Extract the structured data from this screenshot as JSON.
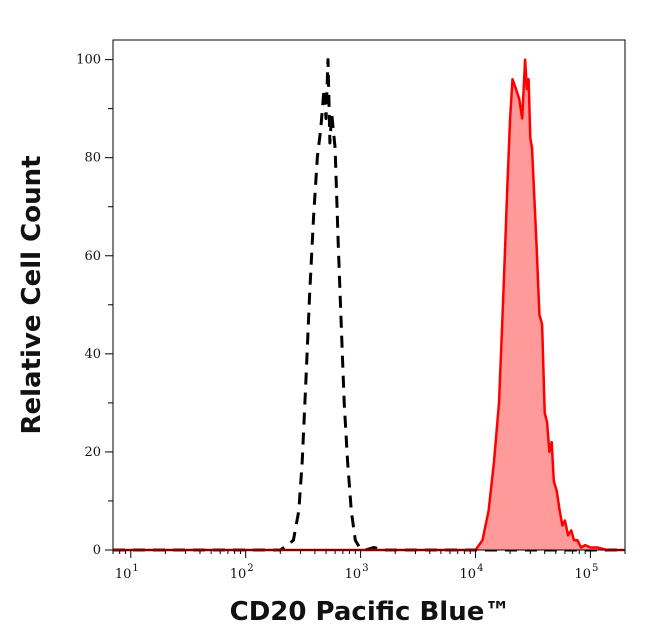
{
  "chart_data": {
    "type": "area",
    "xlabel": "CD20 Pacific Blue™",
    "ylabel": "Relative Cell Count",
    "x_scale": "log",
    "xlim": [
      7,
      200000
    ],
    "ylim": [
      0,
      104
    ],
    "grid": false,
    "x_ticks": [
      {
        "base": "10",
        "exp": "1",
        "value": 10
      },
      {
        "base": "10",
        "exp": "2",
        "value": 100
      },
      {
        "base": "10",
        "exp": "3",
        "value": 1000
      },
      {
        "base": "10",
        "exp": "4",
        "value": 10000
      },
      {
        "base": "10",
        "exp": "5",
        "value": 100000
      }
    ],
    "y_ticks": [
      "0",
      "20",
      "40",
      "60",
      "80",
      "100"
    ],
    "series": [
      {
        "style": "dashed",
        "color": "#000000",
        "fill": false,
        "x": [
          7,
          150,
          200,
          230,
          260,
          290,
          310,
          335,
          360,
          390,
          420,
          450,
          480,
          500,
          520,
          540,
          560,
          600,
          640,
          680,
          720,
          770,
          830,
          900,
          980,
          1100,
          1300,
          1600,
          2000,
          3000,
          200000
        ],
        "y": [
          0,
          0,
          0,
          1,
          2,
          8,
          18,
          35,
          52,
          68,
          80,
          86,
          94,
          88,
          100,
          83,
          89,
          82,
          62,
          45,
          30,
          18,
          8,
          2,
          0.5,
          0,
          0.5,
          0,
          0,
          0,
          0
        ]
      },
      {
        "style": "solid",
        "color": "#ff0000",
        "fill": true,
        "fill_color": "#ff9a9a",
        "x": [
          7,
          10000,
          11500,
          13000,
          14500,
          16000,
          17000,
          18000,
          19000,
          20000,
          21000,
          22500,
          24000,
          25500,
          27000,
          28000,
          29000,
          30000,
          31000,
          32500,
          34000,
          36000,
          38000,
          40000,
          42000,
          44000,
          46000,
          48000,
          51000,
          54000,
          57000,
          60000,
          64000,
          68000,
          72000,
          77000,
          83000,
          90000,
          100000,
          115000,
          140000,
          200000
        ],
        "y": [
          0,
          0,
          2,
          8,
          18,
          30,
          45,
          60,
          75,
          88,
          96,
          94,
          92,
          88,
          100,
          94,
          96,
          84,
          82,
          72,
          62,
          48,
          46,
          28,
          26,
          20,
          22,
          14,
          12,
          8,
          5,
          6,
          3,
          4,
          2,
          2,
          0.5,
          1,
          0.5,
          0.5,
          0,
          0
        ]
      }
    ]
  }
}
